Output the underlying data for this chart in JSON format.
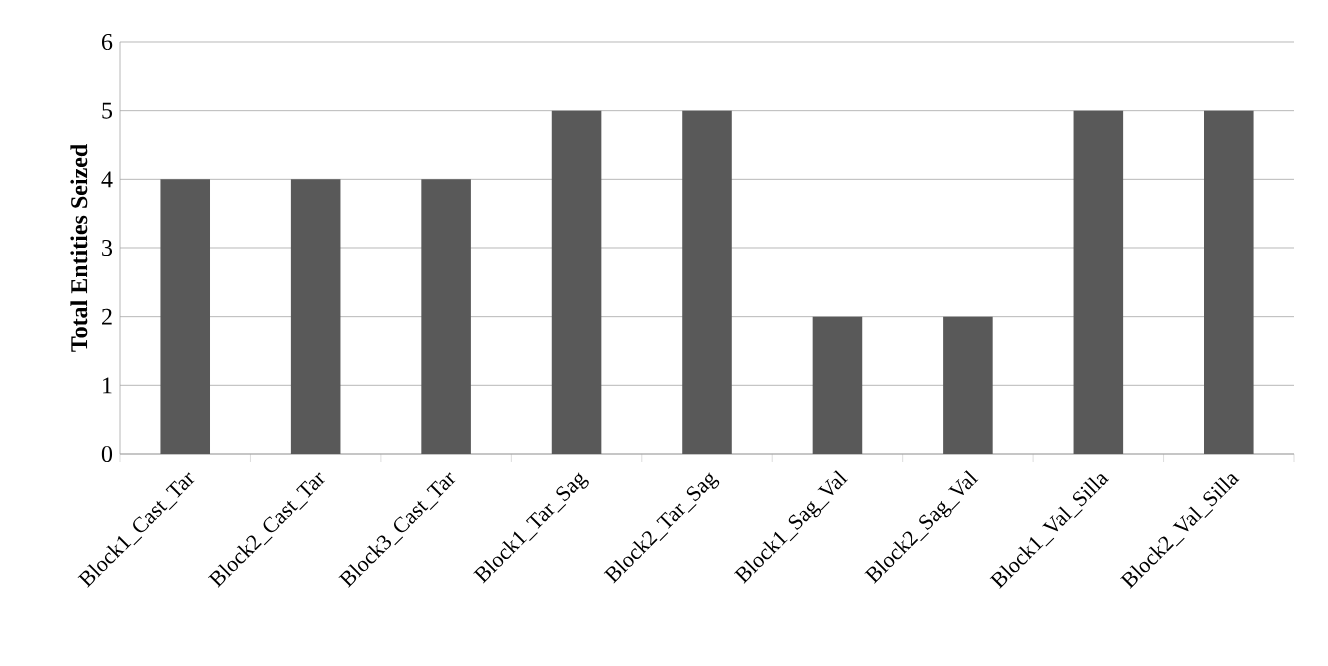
{
  "chart_data": {
    "type": "bar",
    "ylabel": "Total Entities Seized",
    "categories": [
      "Block1_Cast_Tar",
      "Block2_Cast_Tar",
      "Block3_Cast_Tar",
      "Block1_Tar_Sag",
      "Block2_Tar_Sag",
      "Block1_Sag_Val",
      "Block2_Sag_Val",
      "Block1_Val_Silla",
      "Block2_Val_Silla"
    ],
    "values": [
      4,
      4,
      4,
      5,
      5,
      2,
      2,
      5,
      5
    ],
    "color": "#595959",
    "ylim": [
      0,
      6
    ],
    "yticks": [
      0,
      1,
      2,
      3,
      4,
      5,
      6
    ],
    "grid": "y"
  }
}
